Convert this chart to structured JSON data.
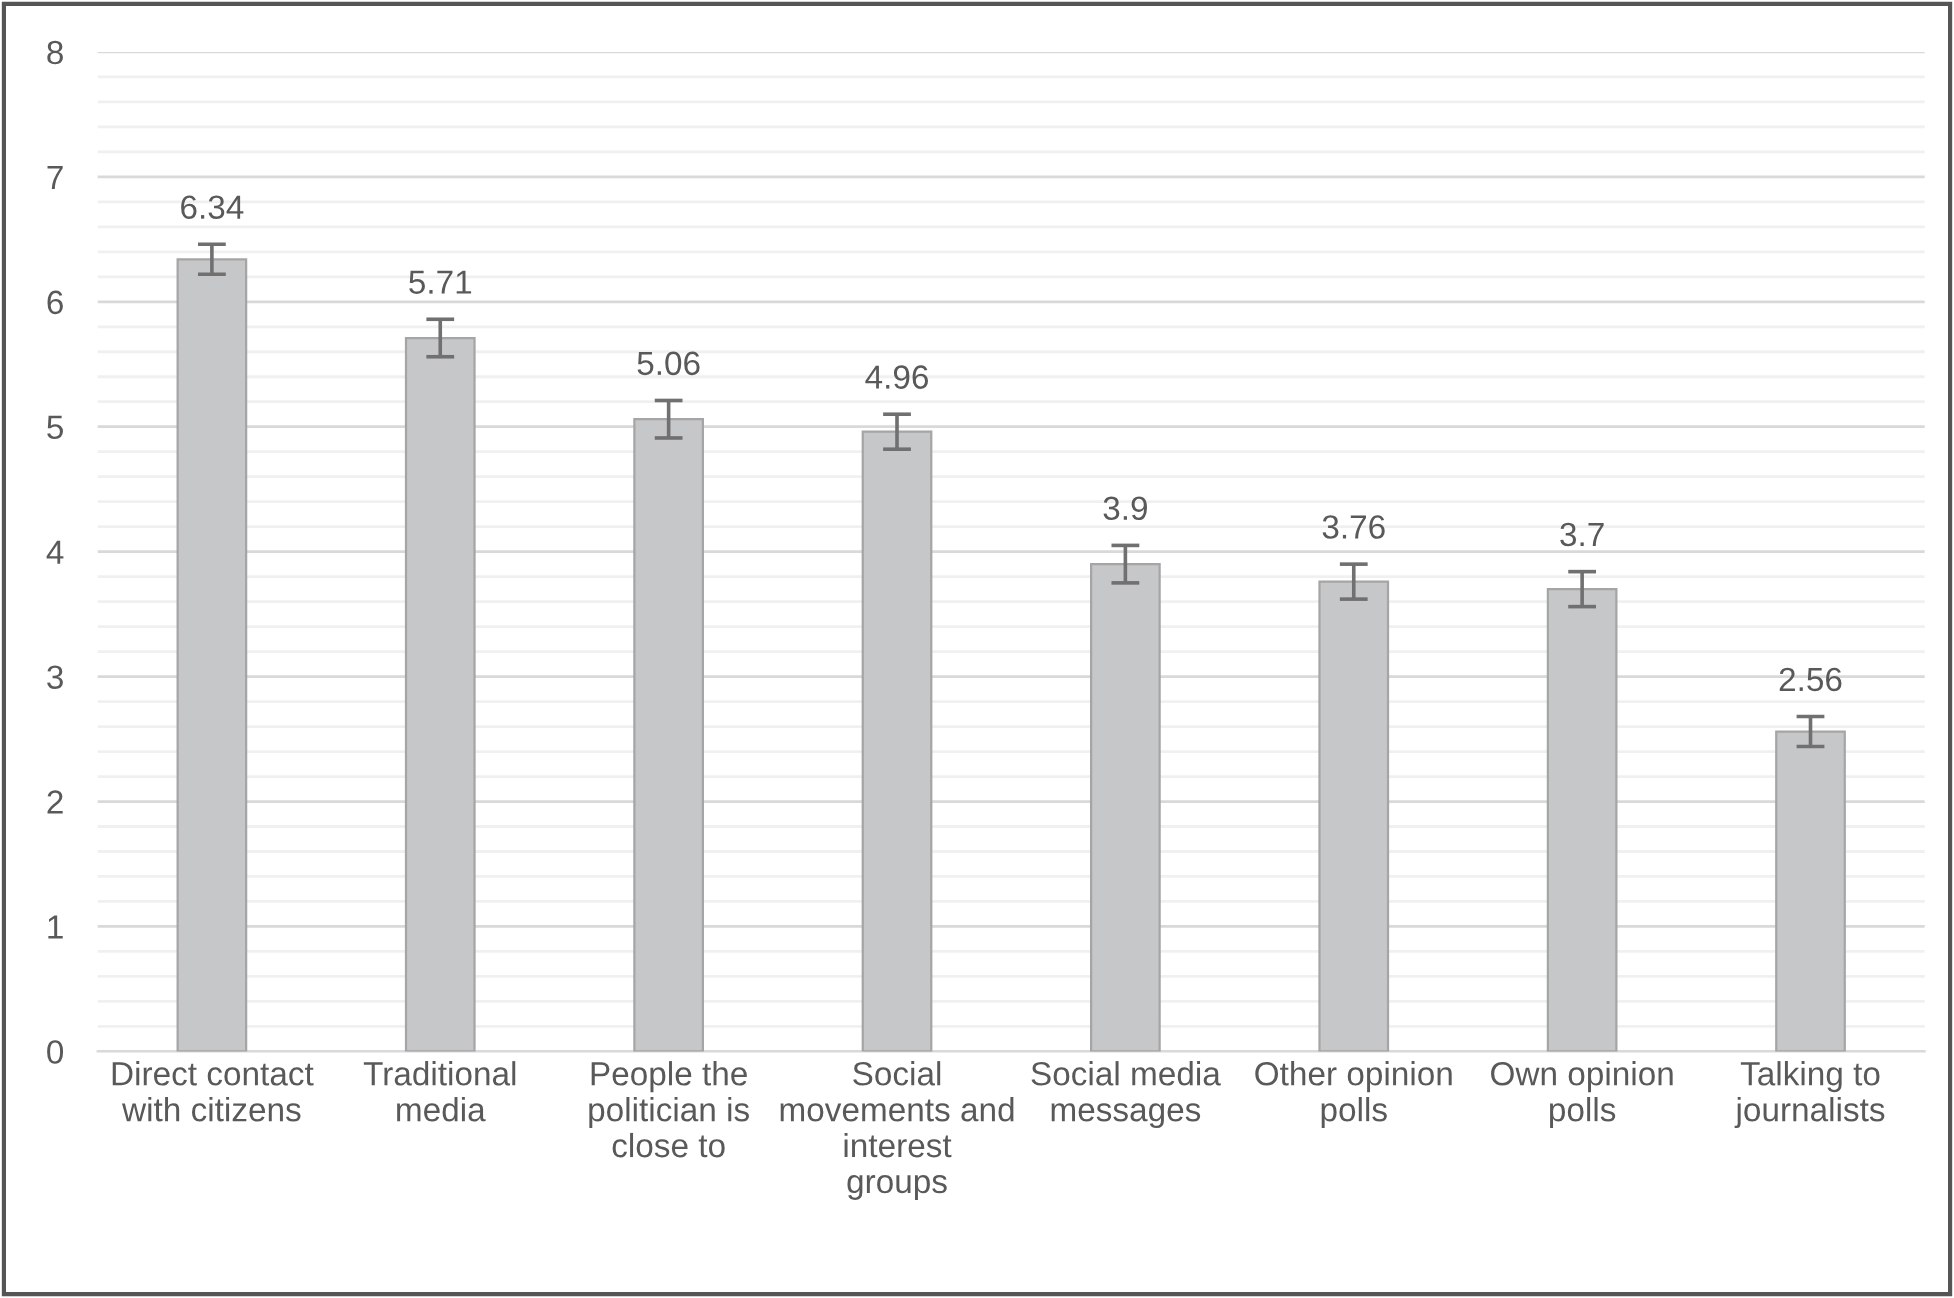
{
  "chart_data": {
    "type": "bar",
    "categories": [
      "Direct contact with citizens",
      "Traditional media",
      "People the politician is close to",
      "Social movements and interest groups",
      "Social media messages",
      "Other opinion polls",
      "Own opinion polls",
      "Talking to journalists"
    ],
    "values": [
      6.34,
      5.71,
      5.06,
      4.96,
      3.9,
      3.76,
      3.7,
      2.56
    ],
    "errors": [
      0.12,
      0.15,
      0.15,
      0.14,
      0.15,
      0.14,
      0.14,
      0.12
    ],
    "color": "#c6c7c9",
    "ylim": [
      0,
      8
    ],
    "yticks": [
      0,
      1,
      2,
      3,
      4,
      5,
      6,
      7,
      8
    ],
    "grid": "y",
    "data_labels": true
  }
}
